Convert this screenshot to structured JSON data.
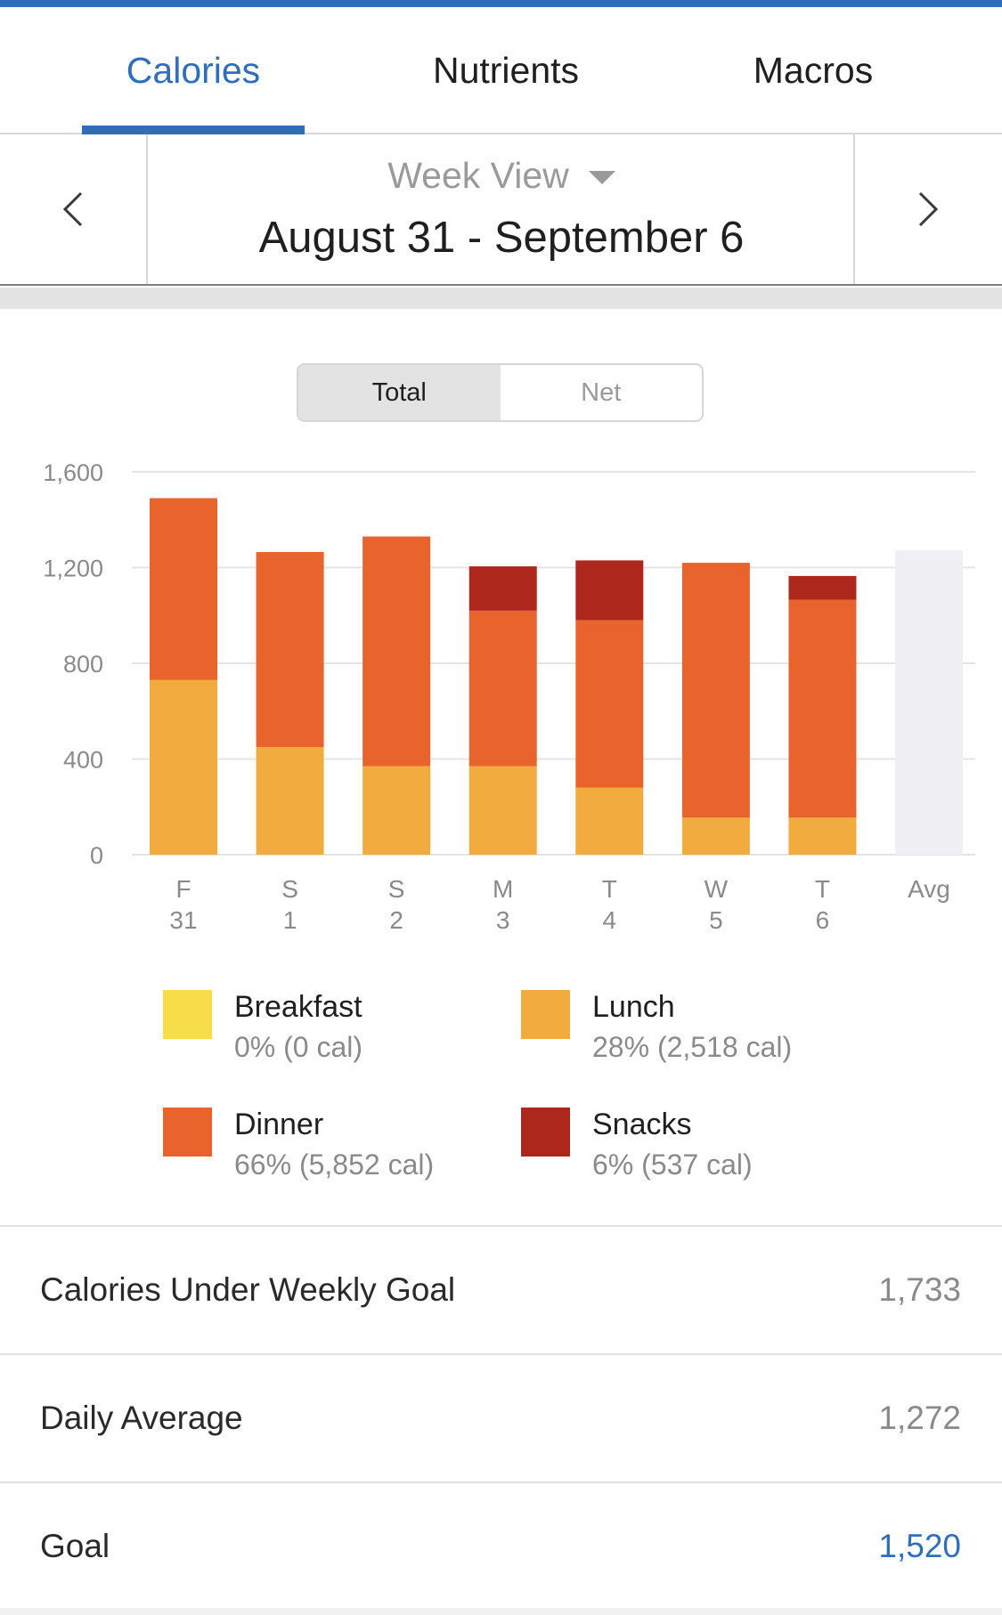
{
  "tabs": [
    {
      "label": "Calories",
      "active": true
    },
    {
      "label": "Nutrients",
      "active": false
    },
    {
      "label": "Macros",
      "active": false
    }
  ],
  "date_nav": {
    "prev_icon": "chevron-left-icon",
    "next_icon": "chevron-right-icon",
    "view_label": "Week View",
    "range": "August 31 - September 6"
  },
  "segment": {
    "total_label": "Total",
    "net_label": "Net",
    "selected": "Total"
  },
  "colors": {
    "accent": "#2f6fba",
    "breakfast": "#f7dd4a",
    "lunch": "#f2ab3e",
    "dinner": "#e8642c",
    "snacks": "#ad271d",
    "avg": "#efeff4",
    "grid": "#e4e4e4"
  },
  "chart_data": {
    "type": "bar",
    "stacked": true,
    "ylim": [
      0,
      1600
    ],
    "y_ticks": [
      "0",
      "400",
      "800",
      "1,200",
      "1,600"
    ],
    "grid": true,
    "categories": [
      {
        "day": "F",
        "date": "31"
      },
      {
        "day": "S",
        "date": "1"
      },
      {
        "day": "S",
        "date": "2"
      },
      {
        "day": "M",
        "date": "3"
      },
      {
        "day": "T",
        "date": "4"
      },
      {
        "day": "W",
        "date": "5"
      },
      {
        "day": "T",
        "date": "6"
      },
      {
        "day": "Avg",
        "date": ""
      }
    ],
    "series": [
      {
        "name": "Breakfast",
        "values": [
          0,
          0,
          0,
          0,
          0,
          0,
          0,
          null
        ]
      },
      {
        "name": "Lunch",
        "values": [
          730,
          450,
          370,
          370,
          280,
          155,
          155,
          null
        ]
      },
      {
        "name": "Dinner",
        "values": [
          760,
          815,
          960,
          650,
          700,
          1065,
          910,
          null
        ]
      },
      {
        "name": "Snacks",
        "values": [
          0,
          0,
          0,
          185,
          250,
          0,
          100,
          null
        ]
      }
    ],
    "average": 1272
  },
  "legend": [
    {
      "name": "Breakfast",
      "value": "0% (0 cal)"
    },
    {
      "name": "Lunch",
      "value": "28% (2,518 cal)"
    },
    {
      "name": "Dinner",
      "value": "66% (5,852 cal)"
    },
    {
      "name": "Snacks",
      "value": "6% (537 cal)"
    }
  ],
  "summary": [
    {
      "label": "Calories Under Weekly Goal",
      "value": "1,733"
    },
    {
      "label": "Daily Average",
      "value": "1,272"
    },
    {
      "label": "Goal",
      "value": "1,520"
    }
  ]
}
